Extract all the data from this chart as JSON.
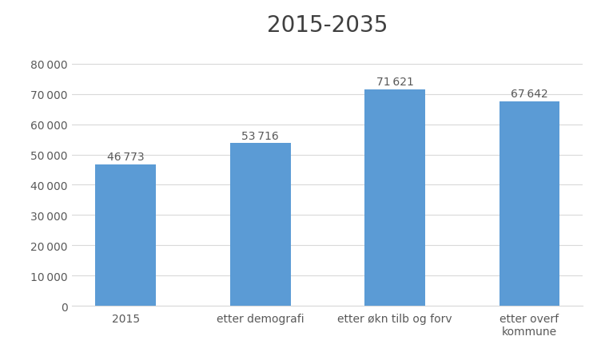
{
  "title": "2015-2035",
  "categories": [
    "2015",
    "etter demografi",
    "etter økn tilb og forv",
    "etter overf\nkommune"
  ],
  "values": [
    46773,
    53716,
    71621,
    67642
  ],
  "labels": [
    "46 773",
    "53 716",
    "71 621",
    "67 642"
  ],
  "bar_color": "#5B9BD5",
  "background_color": "#ffffff",
  "ylim_max": 87000,
  "yticks": [
    0,
    10000,
    20000,
    30000,
    40000,
    50000,
    60000,
    70000,
    80000
  ],
  "ytick_labels": [
    "0",
    "10 000",
    "20 000",
    "30 000",
    "40 000",
    "50 000",
    "60 000",
    "70 000",
    "80 000"
  ],
  "title_fontsize": 20,
  "label_fontsize": 10,
  "tick_fontsize": 10,
  "grid_color": "#d9d9d9",
  "text_color": "#595959",
  "bar_width": 0.45
}
